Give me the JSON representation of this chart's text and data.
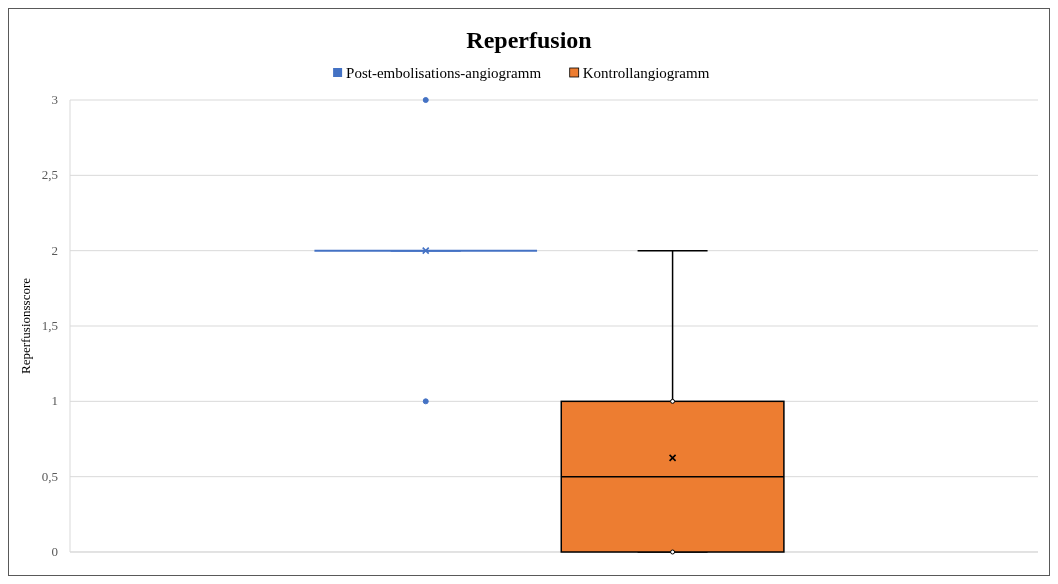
{
  "chart_data": {
    "type": "box",
    "title": "Reperfusion",
    "ylabel": "Reperfusionsscore",
    "categories": [
      null
    ],
    "series": [
      {
        "name": "Post-embolisations-angiogramm",
        "color": "#4472c4",
        "boxes": [
          {
            "low": 2,
            "q1": 2,
            "median": 2,
            "q3": 2,
            "high": 2,
            "mean": 2,
            "outliers": [
              3,
              1
            ]
          }
        ]
      },
      {
        "name": "Kontrollangiogramm",
        "color": "#ed7d31",
        "boxes": [
          {
            "low": 0,
            "q1": 0,
            "median": 0.5,
            "q3": 1,
            "high": 2,
            "mean": 0.625,
            "outliers": [
              1,
              0
            ]
          }
        ]
      }
    ],
    "ylim": [
      0,
      3
    ],
    "yticks": [
      0,
      {
        "value": 0.5,
        "label": "0,5"
      },
      1,
      {
        "value": 1.5,
        "label": "1,5"
      },
      2,
      {
        "value": 2.5,
        "label": "2,5"
      },
      3
    ],
    "grid": "y",
    "legend": "top"
  }
}
